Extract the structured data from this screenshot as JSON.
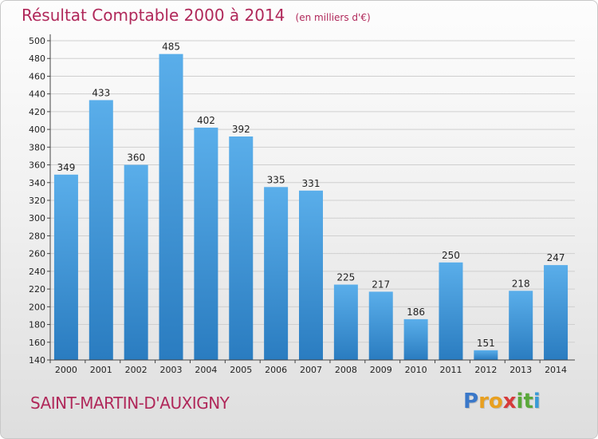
{
  "chart_data": {
    "type": "bar",
    "title": "Résultat Comptable 2000 à 2014",
    "subtitle": "(en milliers d'€)",
    "categories": [
      "2000",
      "2001",
      "2002",
      "2003",
      "2004",
      "2005",
      "2006",
      "2007",
      "2008",
      "2009",
      "2010",
      "2011",
      "2012",
      "2013",
      "2014"
    ],
    "values": [
      349,
      433,
      360,
      485,
      402,
      392,
      335,
      331,
      225,
      217,
      186,
      250,
      151,
      218,
      247
    ],
    "ylim": [
      140,
      500
    ],
    "yticks": [
      140,
      160,
      180,
      200,
      220,
      240,
      260,
      280,
      300,
      320,
      340,
      360,
      380,
      400,
      420,
      440,
      460,
      480,
      500
    ],
    "grid": true,
    "xlabel": "",
    "ylabel": "",
    "bar_color_light": "#5aaeea",
    "bar_color_dark": "#2a7cc0",
    "grid_color": "#cfcfcf"
  },
  "commune": "SAINT-MARTIN-D'AUXIGNY",
  "logo": {
    "letters": [
      "P",
      "r",
      "o",
      "x",
      "i",
      "t",
      "i"
    ],
    "colors": [
      "#3a78c9",
      "#e8a020",
      "#e8a020",
      "#d63b3b",
      "#5aa83a",
      "#5aa83a",
      "#3a9ad6"
    ]
  }
}
